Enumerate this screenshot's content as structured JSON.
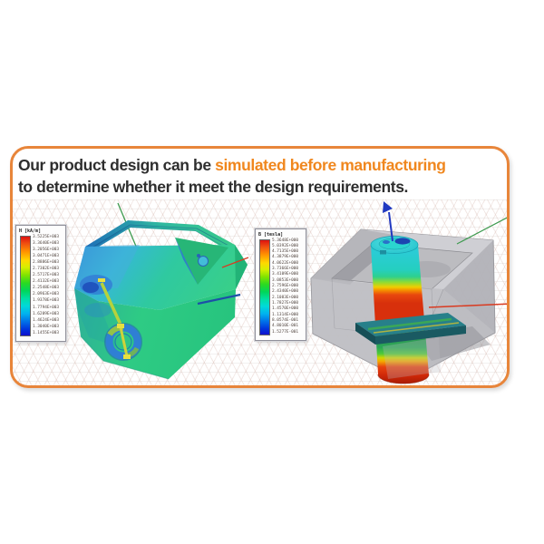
{
  "colors": {
    "accent": "#F0871E",
    "box_border": "#E8853A",
    "headline": "#2E2E2E",
    "axis_green": "#3D9A4E",
    "axis_red": "#D93A20",
    "axis_blue": "#2038C0"
  },
  "headline": {
    "line1_prefix": "Our product design can be ",
    "line1_highlight": "simulated before manufacturing",
    "line2": "to determine whether it meet the design requirements."
  },
  "left_view": {
    "legend": {
      "title": "H [kA/m]",
      "values": [
        "3.5225E+003",
        "3.3640E+003",
        "3.2056E+003",
        "3.0471E+003",
        "2.8886E+003",
        "2.7302E+003",
        "2.5717E+003",
        "2.4132E+003",
        "2.2548E+003",
        "2.0963E+003",
        "1.9378E+003",
        "1.7794E+003",
        "1.6209E+003",
        "1.4624E+003",
        "1.3040E+003",
        "1.1455E+003"
      ]
    }
  },
  "right_view": {
    "legend": {
      "title": "B [tesla]",
      "values": [
        "5.3648E+000",
        "5.0392E+000",
        "4.7135E+000",
        "4.3879E+000",
        "4.0622E+000",
        "3.7366E+000",
        "3.4109E+000",
        "3.0853E+000",
        "2.7596E+000",
        "2.4340E+000",
        "2.1083E+000",
        "1.7827E+000",
        "1.4570E+000",
        "1.1314E+000",
        "8.0574E-001",
        "4.8010E-001",
        "1.5277E-001"
      ]
    }
  }
}
